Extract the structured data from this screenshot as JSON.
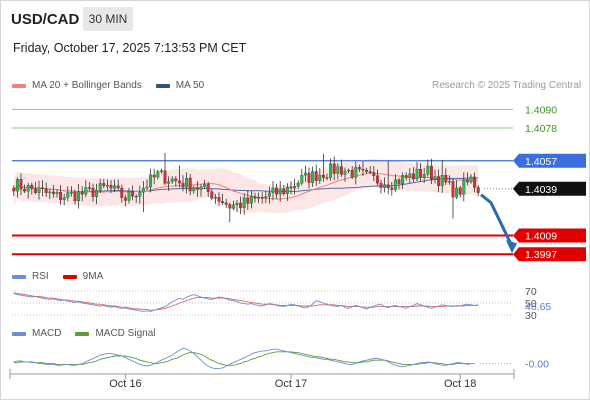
{
  "header": {
    "symbol": "USD/CAD",
    "timeframe": "30 MIN",
    "datetime": "Friday, October 17, 2025 7:13:53 PM CET"
  },
  "legend": {
    "ma20": "MA 20 + Bollinger Bands",
    "ma50": "MA 50",
    "credit": "Research © 2025 Trading Central",
    "rsi": "RSI",
    "rsi_ma": "9MA",
    "macd": "MACD",
    "macd_signal": "MACD Signal"
  },
  "colors": {
    "bull": "#2db84a",
    "bear": "#d32f2f",
    "ma20": "#f08080",
    "ma50": "#4a6fa5",
    "bb_fill": "#fde2e2",
    "green_level": "#8fcf6f",
    "green_text": "#3a9a1f",
    "pivot": "#3b6fe0",
    "support": "#e00000",
    "arrow": "#2b6cb0",
    "rsi": "#6b8fd6",
    "rsi_ma": "#e06666",
    "macd": "#6b8fd6",
    "macd_signal": "#5aa02c"
  },
  "chart_data": [
    {
      "type": "candlestick",
      "title": "USD/CAD",
      "ylim": [
        1.3992,
        1.4096
      ],
      "levels": [
        {
          "value": 1.409,
          "label": "1.4090",
          "kind": "resistance"
        },
        {
          "value": 1.4078,
          "label": "1.4078",
          "kind": "resistance"
        },
        {
          "value": 1.4057,
          "label": "1.4057",
          "kind": "pivot"
        },
        {
          "value": 1.4039,
          "label": "1.4039",
          "kind": "last"
        },
        {
          "value": 1.4009,
          "label": "1.4009",
          "kind": "support"
        },
        {
          "value": 1.3997,
          "label": "1.3997",
          "kind": "support"
        }
      ],
      "x_ticks": [
        {
          "label": "Oct 16",
          "index": 31
        },
        {
          "label": "Oct 17",
          "index": 77
        },
        {
          "label": "Oct 18",
          "index": 124
        }
      ],
      "forecast_target": 1.3997
    },
    {
      "type": "line",
      "name": "RSI",
      "series": [
        {
          "name": "RSI",
          "values": [
            66,
            64,
            63,
            62,
            61,
            60,
            61,
            59,
            58,
            57,
            56,
            57,
            55,
            54,
            55,
            53,
            52,
            51,
            52,
            50,
            49,
            48,
            47,
            46,
            45,
            46,
            44,
            43,
            44,
            42,
            41,
            42,
            40,
            39,
            38,
            37,
            36,
            37,
            36,
            38,
            40,
            42,
            44,
            48,
            52,
            55,
            58,
            56,
            60,
            62,
            64,
            62,
            60,
            58,
            57,
            56,
            58,
            60,
            59,
            57,
            55,
            54,
            52,
            50,
            49,
            48,
            49,
            47,
            46,
            45,
            47,
            49,
            48,
            46,
            45,
            44,
            46,
            48,
            47,
            45,
            43,
            42,
            44,
            48,
            54,
            52,
            50,
            48,
            46,
            45,
            44,
            46,
            43,
            41,
            44,
            46,
            44,
            42,
            40,
            43,
            45,
            47,
            48,
            44,
            42,
            45,
            46,
            44,
            43,
            41,
            44,
            46,
            49,
            47,
            45,
            43,
            41,
            43,
            45,
            47,
            46,
            45,
            44,
            46,
            45,
            47,
            48,
            47,
            46,
            47
          ]
        },
        {
          "name": "9MA",
          "values": [
            67,
            66,
            65,
            64,
            63,
            62,
            61,
            61,
            60,
            59,
            58,
            58,
            57,
            56,
            55,
            55,
            54,
            53,
            53,
            52,
            51,
            50,
            49,
            48,
            48,
            47,
            46,
            45,
            45,
            44,
            43,
            43,
            42,
            41,
            40,
            40,
            39,
            39,
            38,
            38,
            39,
            40,
            41,
            43,
            45,
            47,
            50,
            52,
            54,
            56,
            58,
            59,
            59,
            59,
            59,
            58,
            58,
            58,
            58,
            58,
            57,
            56,
            55,
            54,
            53,
            52,
            51,
            50,
            49,
            48,
            48,
            48,
            47,
            47,
            46,
            46,
            46,
            46,
            46,
            46,
            45,
            45,
            45,
            45,
            46,
            47,
            47,
            47,
            47,
            47,
            46,
            46,
            45,
            44,
            44,
            44,
            44,
            43,
            43,
            43,
            43,
            44,
            44,
            44,
            44,
            44,
            44,
            44,
            44,
            44,
            44,
            44,
            45,
            45,
            45,
            45,
            44,
            44,
            44,
            44,
            45,
            45,
            45,
            45,
            45,
            45,
            46,
            46,
            46,
            46
          ]
        }
      ],
      "ylim": [
        25,
        75
      ],
      "y_ticks": [
        {
          "value": 70,
          "label": "70"
        },
        {
          "value": 50,
          "label": "50"
        },
        {
          "value": 30,
          "label": "30"
        }
      ],
      "last_value": "46.65"
    },
    {
      "type": "line",
      "name": "MACD",
      "series": [
        {
          "name": "MACD",
          "values": [
            0.0002,
            0.0003,
            0.0003,
            0.0002,
            0.0002,
            0.0001,
            0.0001,
            0.0,
            0.0,
            -0.0001,
            -0.0001,
            -0.0001,
            -0.0002,
            -0.0002,
            -0.0001,
            -0.0001,
            -0.0002,
            -0.0002,
            -0.0001,
            0.0,
            0.0002,
            0.0004,
            0.0006,
            0.0008,
            0.001,
            0.0011,
            0.0012,
            0.0012,
            0.0011,
            0.001,
            0.0009,
            0.0007,
            0.0005,
            0.0003,
            0.0001,
            -0.0001,
            -0.0002,
            -0.0003,
            -0.0002,
            0.0,
            0.0002,
            0.0004,
            0.0006,
            0.0008,
            0.001,
            0.0013,
            0.0016,
            0.0018,
            0.0017,
            0.0015,
            0.0012,
            0.0008,
            0.0004,
            0.0,
            -0.0003,
            -0.0005,
            -0.0006,
            -0.0006,
            -0.0005,
            -0.0003,
            -0.0001,
            0.0001,
            0.0003,
            0.0005,
            0.0007,
            0.0009,
            0.0011,
            0.0013,
            0.0014,
            0.0015,
            0.0015,
            0.0016,
            0.0017,
            0.0017,
            0.0016,
            0.0015,
            0.0014,
            0.0013,
            0.0012,
            0.0011,
            0.001,
            0.0009,
            0.0008,
            0.0007,
            0.0007,
            0.0006,
            0.0005,
            0.0005,
            0.0004,
            0.0003,
            0.0002,
            0.0001,
            0.0,
            -0.0001,
            -0.0001,
            0.0,
            0.0002,
            0.0003,
            0.0004,
            0.0005,
            0.0006,
            0.0006,
            0.0005,
            0.0004,
            0.0002,
            0.0,
            -0.0002,
            -0.0003,
            -0.0004,
            -0.0003,
            -0.0002,
            -0.0001,
            0.0,
            0.0001,
            0.0001,
            0.0002,
            0.0001,
            0.0,
            -0.0001,
            -0.0002,
            -0.0002,
            -0.0001,
            0.0,
            0.0001,
            0.0001,
            0.0,
            -0.0001,
            0.0,
            0.0
          ]
        },
        {
          "name": "MACD Signal",
          "values": [
            0.0001,
            0.0001,
            0.0002,
            0.0002,
            0.0002,
            0.0002,
            0.0001,
            0.0001,
            0.0001,
            0.0,
            0.0,
            0.0,
            -0.0001,
            -0.0001,
            -0.0001,
            -0.0001,
            -0.0001,
            -0.0001,
            -0.0001,
            -0.0001,
            0.0,
            0.0001,
            0.0002,
            0.0003,
            0.0005,
            0.0006,
            0.0007,
            0.0008,
            0.0009,
            0.0009,
            0.0009,
            0.0009,
            0.0008,
            0.0007,
            0.0006,
            0.0004,
            0.0003,
            0.0002,
            0.0001,
            0.0,
            0.0,
            0.0001,
            0.0002,
            0.0003,
            0.0005,
            0.0006,
            0.0008,
            0.001,
            0.0012,
            0.0013,
            0.0013,
            0.0012,
            0.0011,
            0.0009,
            0.0006,
            0.0004,
            0.0002,
            0.0,
            -0.0001,
            -0.0002,
            -0.0002,
            -0.0002,
            -0.0001,
            0.0,
            0.0002,
            0.0003,
            0.0005,
            0.0006,
            0.0008,
            0.0009,
            0.0011,
            0.0012,
            0.0013,
            0.0014,
            0.0014,
            0.0014,
            0.0014,
            0.0014,
            0.0013,
            0.0013,
            0.0012,
            0.0011,
            0.001,
            0.0009,
            0.0008,
            0.0008,
            0.0007,
            0.0006,
            0.0005,
            0.0005,
            0.0004,
            0.0003,
            0.0002,
            0.0002,
            0.0001,
            0.0001,
            0.0001,
            0.0002,
            0.0002,
            0.0003,
            0.0004,
            0.0004,
            0.0004,
            0.0004,
            0.0003,
            0.0002,
            0.0001,
            0.0,
            -0.0001,
            -0.0001,
            -0.0001,
            -0.0001,
            -0.0001,
            0.0,
            0.0,
            0.0001,
            0.0001,
            0.0001,
            0.0,
            0.0,
            -0.0001,
            -0.0001,
            -0.0001,
            0.0,
            0.0,
            0.0,
            0.0,
            0.0
          ]
        }
      ],
      "ylim": [
        -0.001,
        0.0022
      ],
      "last_value": "-0.00"
    }
  ]
}
